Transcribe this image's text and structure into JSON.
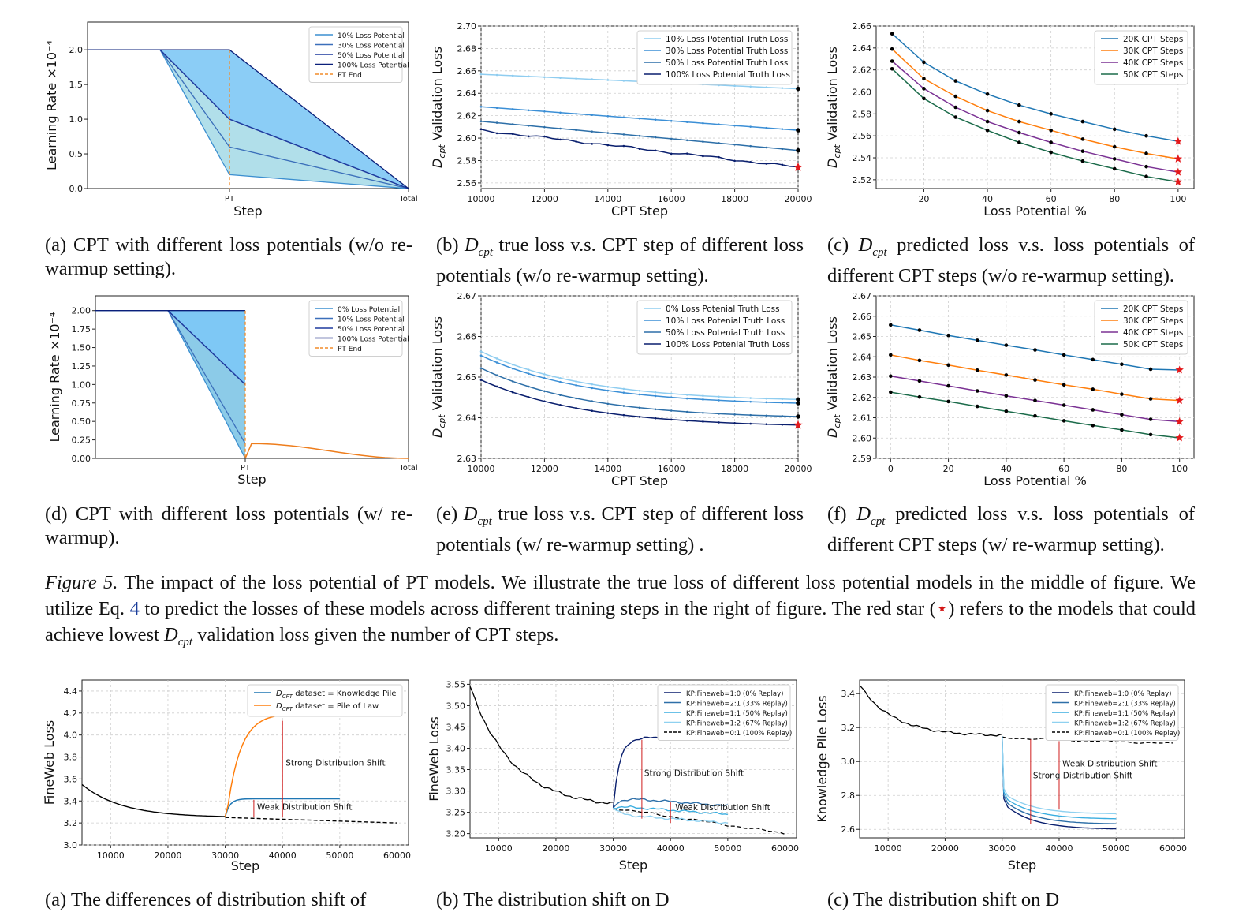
{
  "panels": [
    {
      "id": "a",
      "chart_data": {
        "type": "area",
        "xlabel": "Step",
        "ylabel": "Learning Rate ×10⁻⁴",
        "ylim": [
          0,
          2.4
        ],
        "yticks": [
          "0.0",
          "0.5",
          "1.0",
          "1.5",
          "2.0"
        ],
        "xticks": [
          "PT",
          "Total"
        ],
        "legend_position": "top-right",
        "series": [
          {
            "name": "10% Loss Potential",
            "color": "#3c8fd0",
            "points": [
              [
                "start",
                2.0
              ],
              [
                "warmup-end",
                2.0
              ],
              [
                "PT",
                0.2
              ],
              [
                "Total",
                0.0
              ]
            ]
          },
          {
            "name": "30% Loss Potential",
            "color": "#3b6fba",
            "points": [
              [
                "start",
                2.0
              ],
              [
                "warmup-end",
                2.0
              ],
              [
                "PT",
                0.6
              ],
              [
                "Total",
                0.0
              ]
            ]
          },
          {
            "name": "50% Loss Potential",
            "color": "#1f3a9e",
            "points": [
              [
                "start",
                2.0
              ],
              [
                "warmup-end",
                2.0
              ],
              [
                "PT",
                1.0
              ],
              [
                "Total",
                0.0
              ]
            ]
          },
          {
            "name": "100% Loss Potential",
            "color": "#0a1f7a",
            "points": [
              [
                "start",
                2.0
              ],
              [
                "PT",
                2.0
              ],
              [
                "Total",
                0.0
              ]
            ]
          },
          {
            "name": "PT End",
            "color": "#f28c28",
            "dashed": true
          }
        ]
      }
    },
    {
      "id": "b",
      "chart_data": {
        "type": "line",
        "xlabel": "CPT Step",
        "ylabel": "Dcpt Validation Loss",
        "xlim": [
          10000,
          20000
        ],
        "ylim": [
          2.555,
          2.7
        ],
        "xticks": [
          10000,
          12000,
          14000,
          16000,
          18000,
          20000
        ],
        "yticks": [
          "2.56",
          "2.58",
          "2.60",
          "2.62",
          "2.64",
          "2.66",
          "2.68",
          "2.70"
        ],
        "legend_position": "top-right",
        "series": [
          {
            "name": "10% Loss Potential Truth Loss",
            "color": "#8fcdf0",
            "start": 2.657,
            "end": 2.644
          },
          {
            "name": "30% Loss Potential Truth Loss",
            "color": "#3b8fd6",
            "start": 2.628,
            "end": 2.607
          },
          {
            "name": "50% Loss Potential Truth Loss",
            "color": "#2d6fa8",
            "start": 2.615,
            "end": 2.589
          },
          {
            "name": "100% Loss Potenial Truth Loss",
            "color": "#0a1f6e",
            "start": 2.607,
            "end": 2.574
          }
        ],
        "best_marker": {
          "x": 20000,
          "y": 2.574
        }
      }
    },
    {
      "id": "c",
      "chart_data": {
        "type": "line",
        "xlabel": "Loss Potential %",
        "ylabel": "Dcpt Validation Loss",
        "xlim": [
          5,
          105
        ],
        "ylim": [
          2.512,
          2.66
        ],
        "xticks": [
          20,
          40,
          60,
          80,
          100
        ],
        "yticks": [
          "2.52",
          "2.54",
          "2.56",
          "2.58",
          "2.60",
          "2.62",
          "2.64",
          "2.66"
        ],
        "legend_position": "top-right",
        "x": [
          10,
          20,
          30,
          40,
          50,
          60,
          70,
          80,
          90,
          100
        ],
        "series": [
          {
            "name": "20K CPT Steps",
            "color": "#1f77b4",
            "values": [
              2.653,
              2.627,
              2.61,
              2.598,
              2.588,
              2.58,
              2.573,
              2.566,
              2.56,
              2.555
            ]
          },
          {
            "name": "30K CPT Steps",
            "color": "#ff7f0e",
            "values": [
              2.639,
              2.612,
              2.596,
              2.583,
              2.573,
              2.565,
              2.557,
              2.55,
              2.544,
              2.539
            ]
          },
          {
            "name": "40K CPT Steps",
            "color": "#7b3294",
            "values": [
              2.628,
              2.603,
              2.586,
              2.573,
              2.563,
              2.554,
              2.546,
              2.539,
              2.532,
              2.527
            ]
          },
          {
            "name": "50K CPT Steps",
            "color": "#1b6b4a",
            "values": [
              2.621,
              2.594,
              2.577,
              2.565,
              2.554,
              2.545,
              2.537,
              2.53,
              2.523,
              2.518
            ]
          }
        ]
      }
    },
    {
      "id": "d",
      "chart_data": {
        "type": "area",
        "xlabel": "Step",
        "ylabel": "Learning Rate ×10⁻⁴",
        "ylim": [
          0,
          2.2
        ],
        "yticks": [
          "0.00",
          "0.25",
          "0.50",
          "0.75",
          "1.00",
          "1.25",
          "1.50",
          "1.75",
          "2.00"
        ],
        "xticks": [
          "PT",
          "Total"
        ],
        "legend_position": "top-right",
        "series": [
          {
            "name": "0% Loss Potential",
            "color": "#3c8fd0",
            "pt_value": 0.0
          },
          {
            "name": "10% Loss Potential",
            "color": "#3b6fba",
            "pt_value": 0.2
          },
          {
            "name": "50% Loss Potential",
            "color": "#1f3a9e",
            "pt_value": 1.0
          },
          {
            "name": "100% Loss Potential",
            "color": "#0a1f7a",
            "pt_value": 2.0
          },
          {
            "name": "PT End",
            "color": "#f28c28",
            "dashed": true
          }
        ],
        "rewarmup_peak": 0.2
      }
    },
    {
      "id": "e",
      "chart_data": {
        "type": "line",
        "xlabel": "CPT Step",
        "ylabel": "Dcpt Validation Loss",
        "xlim": [
          10000,
          20000
        ],
        "ylim": [
          2.63,
          2.67
        ],
        "xticks": [
          10000,
          12000,
          14000,
          16000,
          18000,
          20000
        ],
        "yticks": [
          "2.63",
          "2.64",
          "2.65",
          "2.66",
          "2.67"
        ],
        "legend_position": "top-right",
        "series": [
          {
            "name": "0% Loss Potenial Truth Loss",
            "color": "#8fcdf0",
            "start": 2.6563,
            "end": 2.6445
          },
          {
            "name": "10% Loss Potenial Truth Loss",
            "color": "#3b8fd6",
            "start": 2.6553,
            "end": 2.6436
          },
          {
            "name": "50% Loss Potenial Truth Loss",
            "color": "#2d6fa8",
            "start": 2.6522,
            "end": 2.6403
          },
          {
            "name": "100% Loss Potenial Truth Loss",
            "color": "#0a1f6e",
            "start": 2.6493,
            "end": 2.6382
          }
        ],
        "best_marker": {
          "x": 20000,
          "y": 2.6382
        }
      }
    },
    {
      "id": "f",
      "chart_data": {
        "type": "line",
        "xlabel": "Loss Potential %",
        "ylabel": "Dcpt Validation Loss",
        "xlim": [
          -5,
          105
        ],
        "ylim": [
          2.59,
          2.67
        ],
        "xticks": [
          0,
          20,
          40,
          60,
          80,
          100
        ],
        "yticks": [
          "2.59",
          "2.60",
          "2.61",
          "2.62",
          "2.63",
          "2.64",
          "2.65",
          "2.66",
          "2.67"
        ],
        "legend_position": "top-right",
        "x": [
          0,
          10,
          20,
          30,
          40,
          50,
          60,
          70,
          80,
          90,
          100
        ],
        "series": [
          {
            "name": "20K CPT Steps",
            "color": "#1f77b4",
            "values": [
              2.6557,
              2.6531,
              2.6505,
              2.6481,
              2.6457,
              2.6434,
              2.6409,
              2.6386,
              2.6363,
              2.6339,
              2.6335
            ]
          },
          {
            "name": "30K CPT Steps",
            "color": "#ff7f0e",
            "values": [
              2.6409,
              2.6382,
              2.6359,
              2.6334,
              2.631,
              2.6286,
              2.6262,
              2.624,
              2.6216,
              2.6193,
              2.6185
            ]
          },
          {
            "name": "40K CPT Steps",
            "color": "#7b3294",
            "values": [
              2.6305,
              2.6281,
              2.6257,
              2.6232,
              2.6208,
              2.6185,
              2.6162,
              2.6139,
              2.6115,
              2.6092,
              2.6081
            ]
          },
          {
            "name": "50K CPT Steps",
            "color": "#1b6b4a",
            "values": [
              2.6226,
              2.6202,
              2.618,
              2.6156,
              2.6132,
              2.6109,
              2.6085,
              2.6062,
              2.604,
              2.6017,
              2.6001
            ]
          }
        ]
      }
    },
    {
      "id": "g",
      "chart_data": {
        "type": "line",
        "xlabel": "Step",
        "ylabel": "FineWeb Loss",
        "xlim": [
          5000,
          62000
        ],
        "ylim": [
          3.0,
          4.5
        ],
        "xticks": [
          10000,
          20000,
          30000,
          40000,
          50000,
          60000
        ],
        "yticks": [
          "3.0",
          "3.2",
          "3.4",
          "3.6",
          "3.8",
          "4.0",
          "4.2",
          "4.4"
        ],
        "legend_position": "top-right",
        "series": [
          {
            "name": "DCPT dataset = Knowledge Pile",
            "color": "#1f77b4",
            "plateau": 3.42
          },
          {
            "name": "DCPT dataset = Pile of Law",
            "color": "#ff7f0e",
            "plateau": 4.2
          }
        ],
        "annotations": [
          "Strong Distribution Shift",
          "Weak Distribution Shift"
        ]
      }
    },
    {
      "id": "h",
      "chart_data": {
        "type": "line",
        "xlabel": "Step",
        "ylabel": "FineWeb Loss",
        "xlim": [
          5000,
          62000
        ],
        "ylim": [
          3.19,
          3.56
        ],
        "xticks": [
          10000,
          20000,
          30000,
          40000,
          50000,
          60000
        ],
        "yticks": [
          "3.20",
          "3.25",
          "3.30",
          "3.35",
          "3.40",
          "3.45",
          "3.50",
          "3.55"
        ],
        "legend_position": "top-right",
        "series": [
          {
            "name": "KP:Fineweb=1:0 (0% Replay)",
            "color": "#0a1f6e",
            "plateau": 3.425
          },
          {
            "name": "KP:Fineweb=2:1 (33% Replay)",
            "color": "#2d6fa8",
            "plateau": 3.285
          },
          {
            "name": "KP:Fineweb=1:1 (50% Replay)",
            "color": "#3baee0",
            "plateau": 3.265
          },
          {
            "name": "KP:Fineweb=1:2 (67% Replay)",
            "color": "#8fd1f0",
            "plateau": 3.245
          },
          {
            "name": "KP:Fineweb=0:1 (100% Replay)",
            "color": "#000000",
            "dashed": true
          }
        ],
        "annotations": [
          "Strong Distribution Shift",
          "Weak Distribution Shift"
        ]
      }
    },
    {
      "id": "i",
      "chart_data": {
        "type": "line",
        "xlabel": "Step",
        "ylabel": "Knowledge Pile Loss",
        "xlim": [
          5000,
          62000
        ],
        "ylim": [
          2.55,
          3.48
        ],
        "xticks": [
          10000,
          20000,
          30000,
          40000,
          50000,
          60000
        ],
        "yticks": [
          "2.6",
          "2.8",
          "3.0",
          "3.2",
          "3.4"
        ],
        "legend_position": "top-right",
        "series": [
          {
            "name": "KP:Fineweb=1:0 (0% Replay)",
            "color": "#0a1f6e",
            "end": 2.6
          },
          {
            "name": "KP:Fineweb=2:1 (33% Replay)",
            "color": "#2d6fa8",
            "end": 2.63
          },
          {
            "name": "KP:Fineweb=1:1 (50% Replay)",
            "color": "#3baee0",
            "end": 2.66
          },
          {
            "name": "KP:Fineweb=1:2 (67% Replay)",
            "color": "#8fd1f0",
            "end": 2.69
          },
          {
            "name": "KP:Fineweb=0:1 (100% Replay)",
            "color": "#000000",
            "dashed": true
          }
        ],
        "annotations": [
          "Weak Distribution Shift",
          "Strong Distribution Shift"
        ]
      }
    }
  ],
  "captions": {
    "a": {
      "label": "(a)",
      "text": "CPT with different loss potentials (w/o re-warmup setting)."
    },
    "b": {
      "label": "(b)",
      "math": "D",
      "sub": "cpt",
      "text": "true loss v.s. CPT step of different loss potentials (w/o re-warmup setting)."
    },
    "c": {
      "label": "(c)",
      "math": "D",
      "sub": "cpt",
      "text": "predicted loss v.s. loss potentials of different CPT steps (w/o re-warmup setting)."
    },
    "d": {
      "label": "(d)",
      "text": "CPT with different loss potentials (w/ re-warmup)."
    },
    "e": {
      "label": "(e)",
      "math": "D",
      "sub": "cpt",
      "text": "true loss v.s. CPT step of different loss potentials (w/ re-warmup setting) ."
    },
    "f": {
      "label": "(f)",
      "math": "D",
      "sub": "cpt",
      "text": "predicted loss v.s. loss potentials of different CPT steps (w/ re-warmup setting)."
    }
  },
  "figure5": {
    "label": "Figure 5.",
    "text1": "The impact of the loss potential of PT models. We illustrate the true loss of different loss potential models in the middle of figure. We utilize Eq.",
    "eq": "4",
    "text2": "to predict the losses of these models across different training steps in the right of figure. The red star (",
    "star": "⋆",
    "text3": ") refers to the models that could achieve lowest",
    "math": "D",
    "sub": "cpt",
    "text4": "validation loss given the number of CPT steps."
  },
  "bottom_captions": [
    "(a) The differences of distribution shift of",
    "(b) The distribution shift on D",
    "(c) The distribution shift on D"
  ]
}
